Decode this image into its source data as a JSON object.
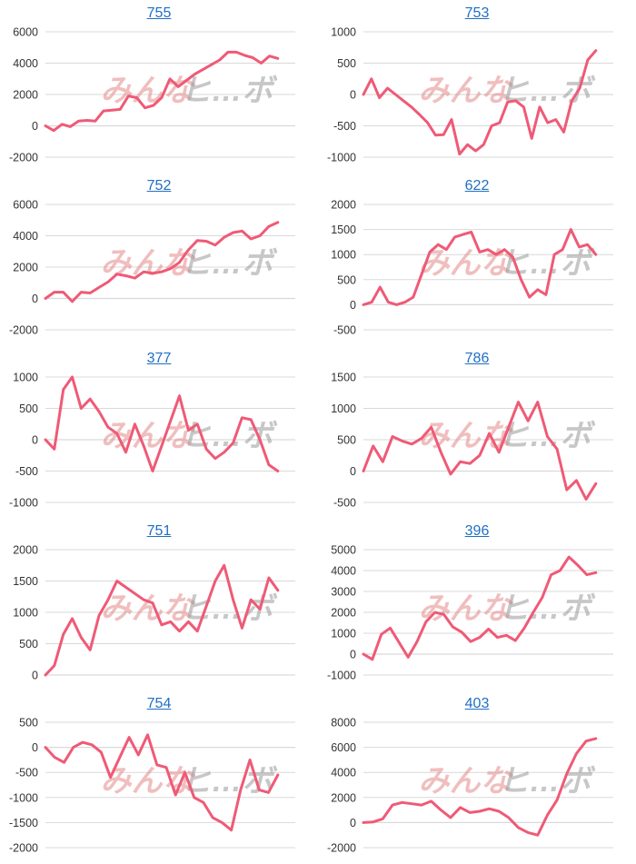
{
  "line_color": "#ef5a76",
  "grid_color": "#d9d9d9",
  "title_color": "#1f6fc5",
  "watermark": {
    "part1": "みんな",
    "part2": "ヒ…ボ"
  },
  "chart_data": [
    {
      "type": "line",
      "title": "755",
      "ylim": [
        -2000,
        6000
      ],
      "yticks": [
        -2000,
        0,
        2000,
        4000,
        6000
      ],
      "values": [
        0,
        -300,
        100,
        -50,
        300,
        350,
        300,
        950,
        1000,
        1050,
        1900,
        1800,
        1150,
        1300,
        1800,
        3000,
        2500,
        2900,
        3300,
        3600,
        3900,
        4200,
        4700,
        4700,
        4500,
        4350,
        4000,
        4450,
        4300
      ]
    },
    {
      "type": "line",
      "title": "753",
      "ylim": [
        -1000,
        1000
      ],
      "yticks": [
        -1000,
        -500,
        0,
        500,
        1000
      ],
      "values": [
        0,
        250,
        -50,
        100,
        0,
        -100,
        -200,
        -320,
        -450,
        -650,
        -640,
        -400,
        -950,
        -800,
        -900,
        -800,
        -500,
        -450,
        -120,
        -100,
        -200,
        -700,
        -200,
        -450,
        -400,
        -600,
        -100,
        100,
        550,
        700
      ]
    },
    {
      "type": "line",
      "title": "752",
      "ylim": [
        -2000,
        6000
      ],
      "yticks": [
        -2000,
        0,
        2000,
        4000,
        6000
      ],
      "values": [
        0,
        400,
        400,
        -200,
        400,
        350,
        700,
        1050,
        1550,
        1450,
        1300,
        1700,
        1600,
        1700,
        1900,
        2300,
        3100,
        3700,
        3650,
        3400,
        3900,
        4200,
        4300,
        3800,
        4000,
        4600,
        4850
      ]
    },
    {
      "type": "line",
      "title": "622",
      "ylim": [
        -500,
        2000
      ],
      "yticks": [
        -500,
        0,
        500,
        1000,
        1500,
        2000
      ],
      "values": [
        0,
        50,
        350,
        50,
        0,
        50,
        150,
        600,
        1050,
        1200,
        1100,
        1350,
        1400,
        1450,
        1050,
        1100,
        1000,
        1100,
        950,
        500,
        150,
        300,
        200,
        1000,
        1100,
        1500,
        1150,
        1200,
        1000
      ]
    },
    {
      "type": "line",
      "title": "377",
      "ylim": [
        -1000,
        1000
      ],
      "yticks": [
        -1000,
        -500,
        0,
        500,
        1000
      ],
      "values": [
        0,
        -150,
        800,
        1000,
        500,
        650,
        450,
        200,
        100,
        -200,
        250,
        -100,
        -500,
        -100,
        300,
        700,
        150,
        250,
        -150,
        -300,
        -200,
        -50,
        350,
        320,
        0,
        -400,
        -500
      ]
    },
    {
      "type": "line",
      "title": "786",
      "ylim": [
        -500,
        1500
      ],
      "yticks": [
        -500,
        0,
        500,
        1000,
        1500
      ],
      "values": [
        0,
        400,
        150,
        550,
        480,
        430,
        520,
        700,
        300,
        -50,
        150,
        120,
        250,
        600,
        300,
        700,
        1100,
        800,
        1100,
        550,
        350,
        -300,
        -150,
        -450,
        -200
      ]
    },
    {
      "type": "line",
      "title": "751",
      "ylim": [
        0,
        2000
      ],
      "yticks": [
        0,
        500,
        1000,
        1500,
        2000
      ],
      "values": [
        0,
        150,
        650,
        900,
        600,
        400,
        950,
        1200,
        1500,
        1400,
        1300,
        1200,
        1150,
        800,
        850,
        700,
        850,
        700,
        1100,
        1500,
        1750,
        1200,
        750,
        1200,
        1050,
        1550,
        1350
      ]
    },
    {
      "type": "line",
      "title": "396",
      "ylim": [
        -1000,
        5000
      ],
      "yticks": [
        -1000,
        0,
        1000,
        2000,
        3000,
        4000,
        5000
      ],
      "values": [
        0,
        -250,
        950,
        1250,
        550,
        -150,
        600,
        1550,
        2000,
        1900,
        1300,
        1050,
        600,
        800,
        1200,
        800,
        900,
        650,
        1250,
        2000,
        2700,
        3800,
        4000,
        4650,
        4250,
        3800,
        3900
      ]
    },
    {
      "type": "line",
      "title": "754",
      "ylim": [
        -2000,
        500
      ],
      "yticks": [
        -2000,
        -1500,
        -1000,
        -500,
        0,
        500
      ],
      "values": [
        0,
        -200,
        -300,
        0,
        100,
        50,
        -100,
        -600,
        -200,
        200,
        -150,
        250,
        -350,
        -400,
        -950,
        -500,
        -1000,
        -1100,
        -1400,
        -1500,
        -1650,
        -850,
        -250,
        -850,
        -900,
        -550
      ]
    },
    {
      "type": "line",
      "title": "403",
      "ylim": [
        -2000,
        8000
      ],
      "yticks": [
        -2000,
        0,
        2000,
        4000,
        6000,
        8000
      ],
      "values": [
        0,
        50,
        300,
        1400,
        1600,
        1500,
        1400,
        1700,
        1000,
        400,
        1200,
        800,
        900,
        1100,
        900,
        400,
        -400,
        -800,
        -1000,
        600,
        1800,
        3900,
        5500,
        6500,
        6700
      ]
    }
  ]
}
